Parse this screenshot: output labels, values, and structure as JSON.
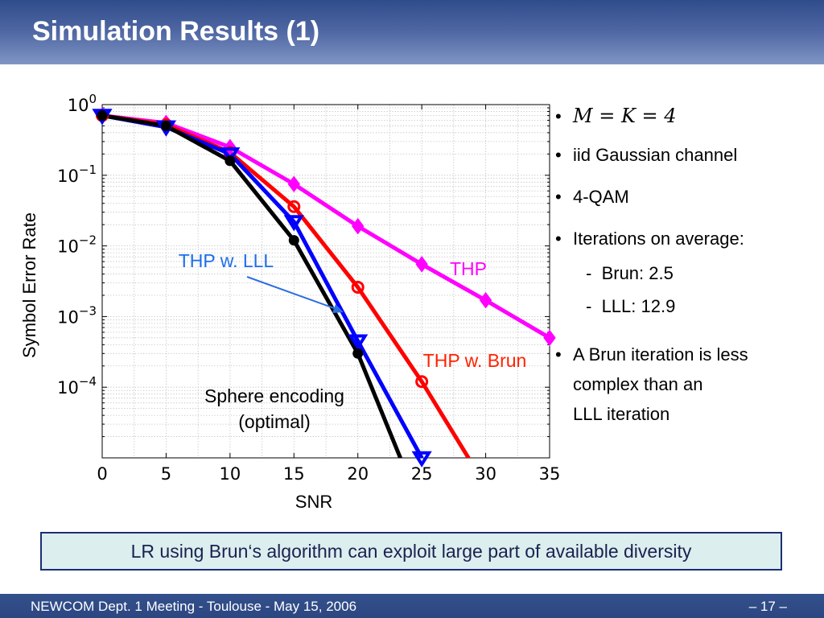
{
  "slide": {
    "title": "Simulation Results (1)",
    "conclusion": "LR using Brun‘s algorithm can exploit large part of available diversity",
    "footer_left": "NEWCOM Dept. 1 Meeting - Toulouse - May 15, 2006",
    "footer_right": "– 17 –"
  },
  "bullets": {
    "b1_math": "M = K = 4",
    "b2": "iid Gaussian channel",
    "b3": "4-QAM",
    "b4": "Iterations on average:",
    "b4_sub1": "Brun: 2.5",
    "b4_sub2": "LLL: 12.9",
    "b5_line1": "A Brun iteration is less",
    "b5_line2": "complex than an",
    "b5_line3": "LLL iteration"
  },
  "chart_data": {
    "type": "line",
    "xlabel": "SNR",
    "ylabel": "Symbol  Error Rate",
    "xlim": [
      0,
      35
    ],
    "ylim_log10": [
      -5,
      0
    ],
    "yscale": "log",
    "grid": true,
    "xticks": [
      "0",
      "5",
      "10",
      "15",
      "20",
      "25",
      "30",
      "35"
    ],
    "yticks": [
      {
        "base": "10",
        "exp": "0",
        "log": 0
      },
      {
        "base": "10",
        "exp": "−1",
        "log": -1
      },
      {
        "base": "10",
        "exp": "−2",
        "log": -2
      },
      {
        "base": "10",
        "exp": "−3",
        "log": -3
      },
      {
        "base": "10",
        "exp": "−4",
        "log": -4
      }
    ],
    "series": [
      {
        "name": "THP",
        "color": "#ff00ff",
        "marker": "diamond",
        "x": [
          0,
          5,
          10,
          15,
          20,
          25,
          30,
          35
        ],
        "y": [
          0.7,
          0.55,
          0.25,
          0.075,
          0.019,
          0.0055,
          0.0017,
          0.0005
        ]
      },
      {
        "name": "THP w. Brun",
        "color": "#ff0000",
        "marker": "circle",
        "x": [
          0,
          5,
          10,
          15,
          20,
          25,
          30
        ],
        "y": [
          0.7,
          0.52,
          0.21,
          0.036,
          0.0026,
          0.00012,
          4e-06
        ]
      },
      {
        "name": "THP w. LLL",
        "color": "#0000ff",
        "marker": "triangle-down",
        "x": [
          0,
          5,
          10,
          15,
          20,
          25
        ],
        "y": [
          0.7,
          0.48,
          0.2,
          0.022,
          0.00045,
          1e-05
        ]
      },
      {
        "name": "Sphere encoding (optimal)",
        "color": "#000000",
        "marker": "circle",
        "x": [
          0,
          5,
          10,
          15,
          20,
          24
        ],
        "y": [
          0.7,
          0.5,
          0.16,
          0.012,
          0.0003,
          5e-06
        ]
      }
    ],
    "annotations": [
      {
        "text": "THP w. LLL",
        "color": "#1e6ee8"
      },
      {
        "text": "THP",
        "color": "#ff00ff"
      },
      {
        "text": "THP w. Brun",
        "color": "#ff2200"
      },
      {
        "text": "Sphere encoding",
        "color": "#000000"
      },
      {
        "text": "(optimal)",
        "color": "#000000"
      }
    ]
  }
}
